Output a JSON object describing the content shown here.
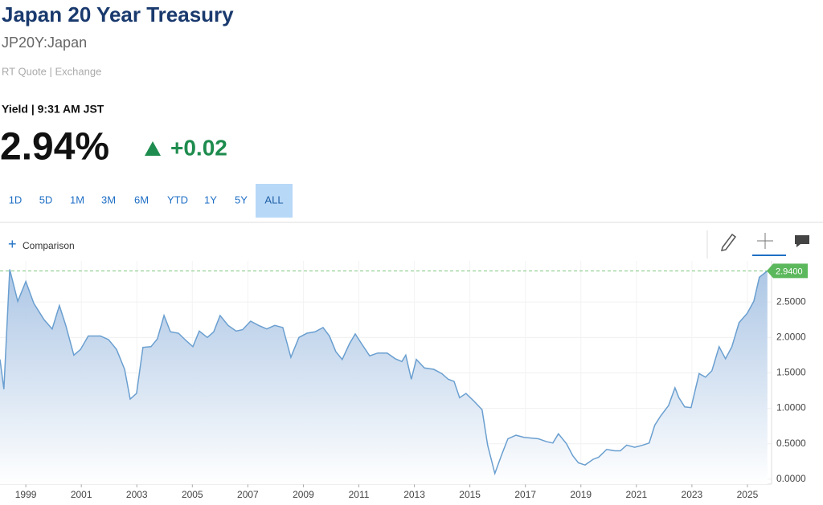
{
  "header": {
    "title": "Japan 20 Year Treasury",
    "symbol": "JP20Y:Japan",
    "source": "RT Quote | Exchange"
  },
  "quote": {
    "label": "Yield | 9:31 AM JST",
    "value": "2.94%",
    "change": "+0.02"
  },
  "ranges": [
    "1D",
    "5D",
    "1M",
    "3M",
    "6M",
    "YTD",
    "1Y",
    "5Y",
    "ALL"
  ],
  "active_range": "ALL",
  "toolbar": {
    "comparison": "Comparison"
  },
  "chart_data": {
    "type": "area",
    "x": [
      1998.07,
      1998.21,
      1998.42,
      1998.71,
      1999.0,
      1999.29,
      1999.66,
      1999.95,
      2000.21,
      2000.44,
      2000.73,
      2000.97,
      2001.25,
      2001.69,
      2001.98,
      2002.27,
      2002.56,
      2002.76,
      2002.99,
      2003.22,
      2003.51,
      2003.74,
      2003.98,
      2004.21,
      2004.5,
      2004.79,
      2005.02,
      2005.25,
      2005.54,
      2005.77,
      2006.0,
      2006.29,
      2006.58,
      2006.81,
      2007.1,
      2007.39,
      2007.68,
      2007.97,
      2008.26,
      2008.55,
      2008.84,
      2009.13,
      2009.42,
      2009.71,
      2009.94,
      2010.17,
      2010.4,
      2010.66,
      2010.87,
      2011.1,
      2011.39,
      2011.68,
      2012.02,
      2012.31,
      2012.55,
      2012.69,
      2012.89,
      2013.07,
      2013.36,
      2013.7,
      2013.99,
      2014.22,
      2014.43,
      2014.63,
      2014.86,
      2015.15,
      2015.44,
      2015.64,
      2015.9,
      2016.16,
      2016.37,
      2016.66,
      2016.95,
      2017.47,
      2017.76,
      2017.99,
      2018.19,
      2018.48,
      2018.71,
      2018.91,
      2019.15,
      2019.44,
      2019.64,
      2019.93,
      2020.22,
      2020.42,
      2020.65,
      2020.94,
      2021.23,
      2021.46,
      2021.66,
      2021.87,
      2022.16,
      2022.39,
      2022.53,
      2022.74,
      2022.97,
      2023.26,
      2023.49,
      2023.72,
      2023.98,
      2024.21,
      2024.44,
      2024.7,
      2024.99,
      2025.23,
      2025.43,
      2025.72
    ],
    "values": [
      1.69,
      1.27,
      2.96,
      2.51,
      2.79,
      2.48,
      2.25,
      2.12,
      2.45,
      2.17,
      1.75,
      1.83,
      2.02,
      2.02,
      1.97,
      1.83,
      1.55,
      1.13,
      1.21,
      1.86,
      1.87,
      1.98,
      2.31,
      2.08,
      2.06,
      1.95,
      1.87,
      2.09,
      2.0,
      2.08,
      2.31,
      2.17,
      2.09,
      2.11,
      2.23,
      2.17,
      2.12,
      2.17,
      2.14,
      1.72,
      2.0,
      2.06,
      2.08,
      2.14,
      2.02,
      1.8,
      1.69,
      1.91,
      2.05,
      1.91,
      1.74,
      1.78,
      1.78,
      1.7,
      1.66,
      1.75,
      1.41,
      1.69,
      1.57,
      1.55,
      1.49,
      1.41,
      1.38,
      1.15,
      1.21,
      1.1,
      0.98,
      0.48,
      0.08,
      0.36,
      0.57,
      0.62,
      0.59,
      0.57,
      0.53,
      0.51,
      0.64,
      0.5,
      0.33,
      0.23,
      0.2,
      0.28,
      0.31,
      0.42,
      0.4,
      0.4,
      0.48,
      0.45,
      0.48,
      0.51,
      0.76,
      0.89,
      1.04,
      1.29,
      1.15,
      1.02,
      1.01,
      1.49,
      1.44,
      1.53,
      1.87,
      1.7,
      1.87,
      2.21,
      2.34,
      2.51,
      2.85,
      2.94
    ],
    "line_color": "#6a9fd0",
    "fill_color": "#a9c4e4",
    "xlim": [
      1998.07,
      2025.87
    ],
    "ylim": [
      -0.07,
      3.08
    ],
    "xticks": [
      1999,
      2001,
      2003,
      2005,
      2007,
      2009,
      2011,
      2013,
      2015,
      2017,
      2019,
      2021,
      2023,
      2025
    ],
    "yticks": [
      {
        "value": 0,
        "label": "0.0000"
      },
      {
        "value": 0.5,
        "label": "0.5000"
      },
      {
        "value": 1,
        "label": "1.0000"
      },
      {
        "value": 1.5,
        "label": "1.5000"
      },
      {
        "value": 2,
        "label": "2.0000"
      },
      {
        "value": 2.5,
        "label": "2.5000"
      }
    ],
    "current": {
      "value": 2.94,
      "label": "2.9400"
    },
    "grid": true
  }
}
